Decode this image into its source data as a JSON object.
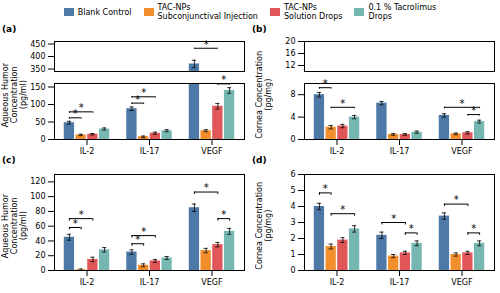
{
  "chart_data": [
    {
      "type": "bar",
      "title": "(a)",
      "ylabel": "Aqueous Humor\nConcentration\n(pg/ml)",
      "categories": [
        "IL-2",
        "IL-17",
        "VEGF"
      ],
      "series": [
        {
          "name": "Blank Control",
          "values": [
            48,
            88,
            370
          ],
          "errors": [
            4,
            5,
            15
          ]
        },
        {
          "name": "TAC-NPs\nSubconjunctival Injection",
          "values": [
            13,
            8,
            25
          ],
          "errors": [
            2,
            2,
            3
          ]
        },
        {
          "name": "TAC-NPs\nSolution Drops",
          "values": [
            15,
            18,
            95
          ],
          "errors": [
            2,
            3,
            8
          ]
        },
        {
          "name": "0.1 % Tacrolimus\nDrops",
          "values": [
            30,
            25,
            140
          ],
          "errors": [
            3,
            3,
            8
          ]
        }
      ],
      "ylim": [
        [
          0,
          160
        ],
        [
          340,
          460
        ]
      ],
      "yticks": [
        [
          0,
          50,
          100,
          150
        ],
        [
          350,
          400,
          450
        ]
      ],
      "annotations": [
        {
          "text": "*",
          "category": "IL-2",
          "series": [
            "Blank Control",
            "TAC-NPs\nSubconjunctival Injection"
          ],
          "y": 58
        },
        {
          "text": "*",
          "category": "IL-2",
          "series": [
            "Blank Control",
            "TAC-NPs\nSolution Drops"
          ],
          "y": 75
        },
        {
          "text": "*",
          "category": "IL-17",
          "series": [
            "Blank Control",
            "TAC-NPs\nSubconjunctival Injection"
          ],
          "y": 100
        },
        {
          "text": "*",
          "category": "IL-17",
          "series": [
            "Blank Control",
            "TAC-NPs\nSolution Drops"
          ],
          "y": 118
        },
        {
          "text": "*",
          "category": "VEGF",
          "series": [
            "Blank Control",
            "TAC-NPs\nSolution Drops"
          ],
          "y": 430
        },
        {
          "text": "*",
          "category": "VEGF",
          "series": [
            "TAC-NPs\nSolution Drops",
            "0.1 % Tacrolimus\nDrops"
          ],
          "y": 155
        }
      ],
      "legend": "top",
      "grid": false
    },
    {
      "type": "bar",
      "title": "(b)",
      "ylabel": "Cornea Concentration\n(pg/mg)",
      "categories": [
        "IL-2",
        "IL-17",
        "VEGF"
      ],
      "series": [
        {
          "name": "Blank Control",
          "values": [
            8.0,
            6.5,
            4.3
          ],
          "errors": [
            0.4,
            0.3,
            0.3
          ]
        },
        {
          "name": "TAC-NPs\nSubconjunctival Injection",
          "values": [
            2.2,
            0.9,
            1.0
          ],
          "errors": [
            0.3,
            0.15,
            0.15
          ]
        },
        {
          "name": "TAC-NPs\nSolution Drops",
          "values": [
            2.4,
            0.9,
            1.2
          ],
          "errors": [
            0.3,
            0.15,
            0.2
          ]
        },
        {
          "name": "0.1 % Tacrolimus\nDrops",
          "values": [
            4.0,
            1.3,
            3.2
          ],
          "errors": [
            0.3,
            0.2,
            0.25
          ]
        }
      ],
      "ylim": [
        [
          0,
          10
        ],
        [
          10,
          20
        ]
      ],
      "yticks": [
        [
          0,
          4,
          8
        ],
        [
          12,
          16,
          20
        ]
      ],
      "annotations": [
        {
          "text": "*",
          "category": "IL-2",
          "series": [
            "Blank Control",
            "TAC-NPs\nSubconjunctival Injection"
          ],
          "y": 9.0
        },
        {
          "text": "*",
          "category": "IL-2",
          "series": [
            "TAC-NPs\nSubconjunctival Injection",
            "0.1 % Tacrolimus\nDrops"
          ],
          "y": 5.5
        },
        {
          "text": "*",
          "category": "VEGF",
          "series": [
            "Blank Control",
            "0.1 % Tacrolimus\nDrops"
          ],
          "y": 5.5
        },
        {
          "text": "*",
          "category": "VEGF",
          "series": [
            "TAC-NPs\nSolution Drops",
            "0.1 % Tacrolimus\nDrops"
          ],
          "y": 4.2
        }
      ],
      "grid": false
    },
    {
      "type": "bar",
      "title": "(c)",
      "ylabel": "Aqueous Humor\nConcentration\n(pg/ml)",
      "categories": [
        "IL-2",
        "IL-17",
        "VEGF"
      ],
      "series": [
        {
          "name": "Blank Control",
          "values": [
            45,
            25,
            85
          ],
          "errors": [
            4,
            3,
            5
          ]
        },
        {
          "name": "TAC-NPs\nSubconjunctival Injection",
          "values": [
            1,
            7,
            27
          ],
          "errors": [
            1,
            2,
            3
          ]
        },
        {
          "name": "TAC-NPs\nSolution Drops",
          "values": [
            15,
            13,
            35
          ],
          "errors": [
            3,
            2,
            3
          ]
        },
        {
          "name": "0.1 % Tacrolimus\nDrops",
          "values": [
            28,
            17,
            53
          ],
          "errors": [
            3,
            2,
            4
          ]
        }
      ],
      "ylim": [
        0,
        130
      ],
      "yticks": [
        0,
        20,
        40,
        60,
        80,
        100,
        120
      ],
      "annotations": [
        {
          "text": "*",
          "category": "IL-2",
          "series": [
            "Blank Control",
            "TAC-NPs\nSubconjunctival Injection"
          ],
          "y": 55
        },
        {
          "text": "*",
          "category": "IL-2",
          "series": [
            "Blank Control",
            "TAC-NPs\nSolution Drops"
          ],
          "y": 67
        },
        {
          "text": "*",
          "category": "IL-17",
          "series": [
            "Blank Control",
            "TAC-NPs\nSubconjunctival Injection"
          ],
          "y": 33
        },
        {
          "text": "*",
          "category": "IL-17",
          "series": [
            "Blank Control",
            "TAC-NPs\nSolution Drops"
          ],
          "y": 44
        },
        {
          "text": "*",
          "category": "VEGF",
          "series": [
            "Blank Control",
            "TAC-NPs\nSolution Drops"
          ],
          "y": 103
        },
        {
          "text": "*",
          "category": "VEGF",
          "series": [
            "TAC-NPs\nSolution Drops",
            "0.1 % Tacrolimus\nDrops"
          ],
          "y": 67
        }
      ],
      "grid": false
    },
    {
      "type": "bar",
      "title": "(d)",
      "ylabel": "Cornea Concentration\n(pg/mg)",
      "categories": [
        "IL-2",
        "IL-17",
        "VEGF"
      ],
      "series": [
        {
          "name": "Blank Control",
          "values": [
            4.0,
            2.2,
            3.4
          ],
          "errors": [
            0.2,
            0.2,
            0.2
          ]
        },
        {
          "name": "TAC-NPs\nSubconjunctival Injection",
          "values": [
            1.5,
            0.9,
            1.0
          ],
          "errors": [
            0.15,
            0.1,
            0.1
          ]
        },
        {
          "name": "TAC-NPs\nSolution Drops",
          "values": [
            1.9,
            1.1,
            1.1
          ],
          "errors": [
            0.15,
            0.1,
            0.1
          ]
        },
        {
          "name": "0.1 % Tacrolimus\nDrops",
          "values": [
            2.6,
            1.7,
            1.7
          ],
          "errors": [
            0.2,
            0.15,
            0.15
          ]
        }
      ],
      "ylim": [
        0,
        6
      ],
      "yticks": [
        0,
        1,
        2,
        3,
        4,
        5,
        6
      ],
      "annotations": [
        {
          "text": "*",
          "category": "IL-2",
          "series": [
            "Blank Control",
            "TAC-NPs\nSubconjunctival Injection"
          ],
          "y": 4.7
        },
        {
          "text": "*",
          "category": "IL-2",
          "series": [
            "TAC-NPs\nSubconjunctival Injection",
            "0.1 % Tacrolimus\nDrops"
          ],
          "y": 3.4
        },
        {
          "text": "*",
          "category": "IL-17",
          "series": [
            "Blank Control",
            "TAC-NPs\nSolution Drops"
          ],
          "y": 2.85
        },
        {
          "text": "*",
          "category": "IL-17",
          "series": [
            "TAC-NPs\nSolution Drops",
            "0.1 % Tacrolimus\nDrops"
          ],
          "y": 2.2
        },
        {
          "text": "*",
          "category": "VEGF",
          "series": [
            "Blank Control",
            "TAC-NPs\nSolution Drops"
          ],
          "y": 4.0
        },
        {
          "text": "*",
          "category": "VEGF",
          "series": [
            "TAC-NPs\nSolution Drops",
            "0.1 % Tacrolimus\nDrops"
          ],
          "y": 2.2
        }
      ],
      "grid": false
    }
  ]
}
